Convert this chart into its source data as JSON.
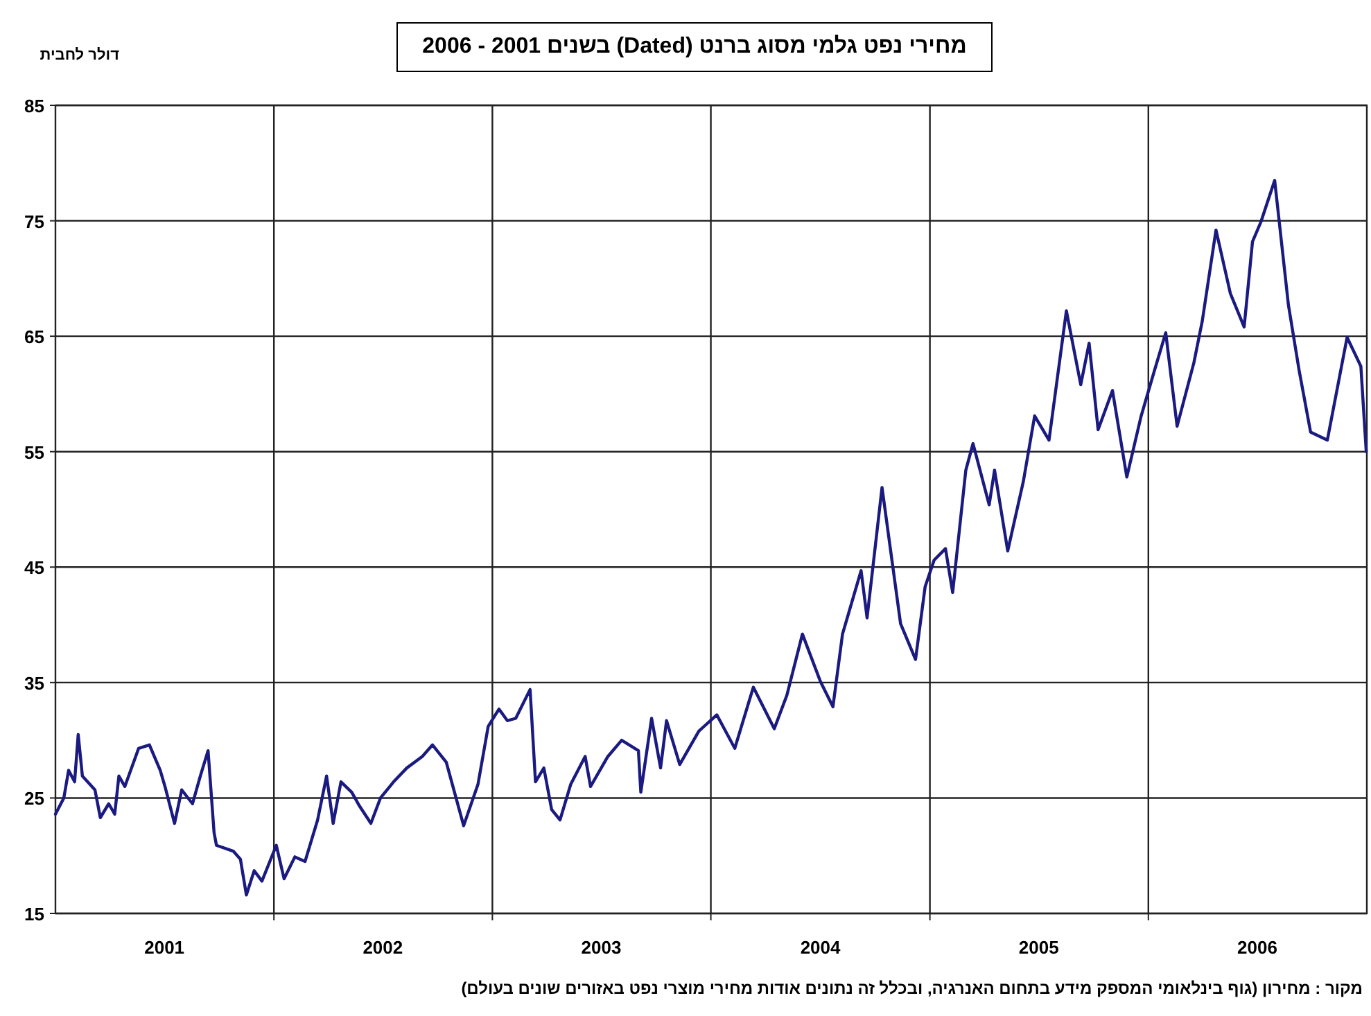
{
  "chart_data": {
    "type": "line",
    "title": "מחירי נפט גלמי מסוג ברנט (Dated) בשנים 2001 - 2006",
    "ylabel": "דולר לחבית",
    "annotations": [
      "מקור : מחירון (גוף בינלאומי המספק מידע בתחום האנרגיה, ובכלל זה נתונים אודות מחירי מוצרי נפט באזורים שונים בעולם)"
    ],
    "x": [
      "2001-01-01",
      "2001-01-15",
      "2001-01-23",
      "2001-02-02",
      "2001-02-08",
      "2001-02-15",
      "2001-03-08",
      "2001-03-17",
      "2001-03-31",
      "2001-04-10",
      "2001-04-17",
      "2001-04-27",
      "2001-05-20",
      "2001-06-07",
      "2001-06-25",
      "2001-07-03",
      "2001-07-19",
      "2001-07-31",
      "2001-08-18",
      "2001-08-31",
      "2001-09-13",
      "2001-09-23",
      "2001-09-27",
      "2001-10-25",
      "2001-11-06",
      "2001-11-16",
      "2001-11-29",
      "2001-12-12",
      "2002-01-05",
      "2002-01-18",
      "2002-02-05",
      "2002-02-22",
      "2002-03-15",
      "2002-03-30",
      "2002-04-10",
      "2002-04-23",
      "2002-05-11",
      "2002-05-24",
      "2002-06-12",
      "2002-06-28",
      "2002-07-20",
      "2002-08-11",
      "2002-09-06",
      "2002-09-23",
      "2002-10-16",
      "2002-11-14",
      "2002-12-08",
      "2002-12-25",
      "2003-01-12",
      "2003-01-26",
      "2003-02-09",
      "2003-03-05",
      "2003-03-14",
      "2003-03-28",
      "2003-04-10",
      "2003-04-24",
      "2003-05-12",
      "2003-06-05",
      "2003-06-14",
      "2003-07-13",
      "2003-08-05",
      "2003-09-02",
      "2003-09-06",
      "2003-09-24",
      "2003-10-09",
      "2003-10-19",
      "2003-11-10",
      "2003-12-12",
      "2004-01-11",
      "2004-02-10",
      "2004-03-12",
      "2004-04-16",
      "2004-05-07",
      "2004-06-02",
      "2004-07-02",
      "2004-07-23",
      "2004-08-08",
      "2004-09-08",
      "2004-09-18",
      "2004-10-13",
      "2004-11-13",
      "2004-12-08",
      "2004-12-24",
      "2005-01-08",
      "2005-01-27",
      "2005-02-08",
      "2005-03-02",
      "2005-03-14",
      "2005-04-10",
      "2005-04-19",
      "2005-05-11",
      "2005-06-06",
      "2005-06-25",
      "2005-07-19",
      "2005-08-17",
      "2005-09-10",
      "2005-09-24",
      "2005-10-09",
      "2005-11-02",
      "2005-11-26",
      "2005-12-20",
      "2006-01-11",
      "2006-01-30",
      "2006-02-18",
      "2006-03-18",
      "2006-04-01",
      "2006-04-24",
      "2006-05-18",
      "2006-06-10",
      "2006-06-24",
      "2006-07-08",
      "2006-07-31",
      "2006-08-23",
      "2006-09-10",
      "2006-09-29",
      "2006-10-27",
      "2006-11-29",
      "2006-12-22",
      "2006-12-31"
    ],
    "series": [
      {
        "color": "#1a1a80",
        "values": [
          23.6,
          25.0,
          27.4,
          26.4,
          30.5,
          26.9,
          25.7,
          23.3,
          24.5,
          23.6,
          26.9,
          26.0,
          29.3,
          29.6,
          27.4,
          26.0,
          22.8,
          25.7,
          24.5,
          26.9,
          29.1,
          22.0,
          20.9,
          20.4,
          19.7,
          16.6,
          18.7,
          17.8,
          20.9,
          18.0,
          19.9,
          19.5,
          23.1,
          26.9,
          22.8,
          26.4,
          25.5,
          24.3,
          22.8,
          25.0,
          26.4,
          27.6,
          28.6,
          29.6,
          28.1,
          22.6,
          26.2,
          31.2,
          32.7,
          31.7,
          31.9,
          34.4,
          26.4,
          27.6,
          24.0,
          23.1,
          26.2,
          28.6,
          26.0,
          28.6,
          30.0,
          29.1,
          25.5,
          31.9,
          27.6,
          31.7,
          27.9,
          30.8,
          32.2,
          29.3,
          34.6,
          31.0,
          33.9,
          39.2,
          35.1,
          32.9,
          39.2,
          44.7,
          40.6,
          51.9,
          40.1,
          37.0,
          43.3,
          45.6,
          46.6,
          42.8,
          53.4,
          55.7,
          50.4,
          53.4,
          46.4,
          52.4,
          58.1,
          56.0,
          67.2,
          60.8,
          64.4,
          56.9,
          60.3,
          52.8,
          58.1,
          62.0,
          65.3,
          57.2,
          62.7,
          66.3,
          74.2,
          68.7,
          65.8,
          73.2,
          74.9,
          78.5,
          67.7,
          62.0,
          56.7,
          56.0,
          64.9,
          62.4,
          55.0
        ]
      }
    ],
    "xlim": [
      "2001-01-01",
      "2007-01-01"
    ],
    "xticks": [
      {
        "value": "2001-07-02",
        "label": "2001"
      },
      {
        "value": "2002-01-01",
        "label": null
      },
      {
        "value": "2002-07-02",
        "label": "2002"
      },
      {
        "value": "2003-01-01",
        "label": null
      },
      {
        "value": "2003-07-02",
        "label": "2003"
      },
      {
        "value": "2004-01-01",
        "label": null
      },
      {
        "value": "2004-07-02",
        "label": "2004"
      },
      {
        "value": "2005-01-01",
        "label": null
      },
      {
        "value": "2005-07-02",
        "label": "2005"
      },
      {
        "value": "2006-01-01",
        "label": null
      },
      {
        "value": "2006-07-02",
        "label": "2006"
      }
    ],
    "ylim": [
      15,
      85
    ],
    "yticks": [
      15,
      25,
      35,
      45,
      55,
      65,
      75,
      85
    ],
    "grid": true,
    "line_style": "solid",
    "marker": "none"
  }
}
